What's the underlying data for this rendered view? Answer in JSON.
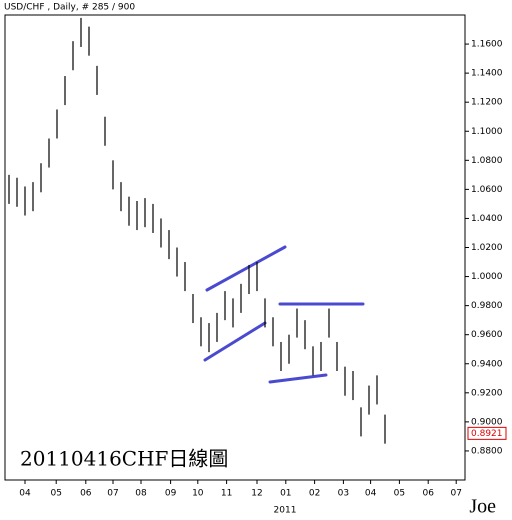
{
  "chart_data": {
    "type": "hl",
    "title": "USD/CHF , Daily, # 285 / 900",
    "annotation": "20110416CHF日線圖",
    "year_label": "2011",
    "signature": "Joe",
    "last_value": 0.8921,
    "high": [
      1.07,
      1.068,
      1.062,
      1.065,
      1.078,
      1.095,
      1.115,
      1.138,
      1.162,
      1.178,
      1.172,
      1.145,
      1.11,
      1.08,
      1.065,
      1.055,
      1.052,
      1.054,
      1.05,
      1.04,
      1.032,
      1.02,
      1.01,
      0.988,
      0.972,
      0.968,
      0.975,
      0.99,
      0.985,
      0.995,
      1.008,
      1.01,
      0.985,
      0.972,
      0.955,
      0.96,
      0.978,
      0.97,
      0.952,
      0.955,
      0.978,
      0.955,
      0.938,
      0.935,
      0.91,
      0.925,
      0.932,
      0.905
    ],
    "low": [
      1.05,
      1.048,
      1.042,
      1.045,
      1.058,
      1.075,
      1.095,
      1.118,
      1.142,
      1.158,
      1.152,
      1.125,
      1.09,
      1.06,
      1.045,
      1.035,
      1.032,
      1.034,
      1.03,
      1.02,
      1.012,
      1.0,
      0.99,
      0.968,
      0.952,
      0.948,
      0.955,
      0.97,
      0.965,
      0.975,
      0.988,
      0.99,
      0.965,
      0.952,
      0.935,
      0.94,
      0.958,
      0.95,
      0.932,
      0.935,
      0.958,
      0.935,
      0.918,
      0.915,
      0.89,
      0.905,
      0.912,
      0.885
    ],
    "xlim": [
      -0.5,
      57
    ],
    "xticks": [
      {
        "value": 2,
        "label": "04"
      },
      {
        "value": 5.9,
        "label": "05"
      },
      {
        "value": 9.6,
        "label": "06"
      },
      {
        "value": 13,
        "label": "07"
      },
      {
        "value": 16.5,
        "label": "08"
      },
      {
        "value": 20.2,
        "label": "09"
      },
      {
        "value": 23.6,
        "label": "10"
      },
      {
        "value": 27.2,
        "label": "11"
      },
      {
        "value": 31,
        "label": "12"
      },
      {
        "value": 34.6,
        "label": "01"
      },
      {
        "value": 38.2,
        "label": "02"
      },
      {
        "value": 41.8,
        "label": "03"
      },
      {
        "value": 45.2,
        "label": "04"
      },
      {
        "value": 48.8,
        "label": "05"
      },
      {
        "value": 52.4,
        "label": "06"
      },
      {
        "value": 55.9,
        "label": "07"
      }
    ],
    "ylim": [
      0.86,
      1.18
    ],
    "yticks": [
      {
        "value": 0.88,
        "label": "0.8800"
      },
      {
        "value": 0.9,
        "label": "0.9000"
      },
      {
        "value": 0.92,
        "label": "0.9200"
      },
      {
        "value": 0.94,
        "label": "0.9400"
      },
      {
        "value": 0.96,
        "label": "0.9600"
      },
      {
        "value": 0.98,
        "label": "0.9800"
      },
      {
        "value": 1.0,
        "label": "1.0000"
      },
      {
        "value": 1.02,
        "label": "1.0200"
      },
      {
        "value": 1.04,
        "label": "1.0400"
      },
      {
        "value": 1.06,
        "label": "1.0600"
      },
      {
        "value": 1.08,
        "label": "1.0800"
      },
      {
        "value": 1.1,
        "label": "1.1000"
      },
      {
        "value": 1.12,
        "label": "1.1200"
      },
      {
        "value": 1.14,
        "label": "1.1400"
      },
      {
        "value": 1.16,
        "label": "1.1600"
      }
    ]
  }
}
